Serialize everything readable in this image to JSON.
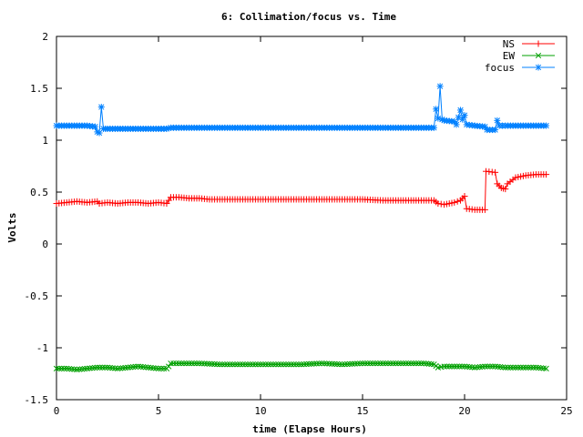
{
  "chart_data": {
    "type": "line",
    "title": "6: Collimation/focus vs. Time",
    "xlabel": "time (Elapse Hours)",
    "ylabel": "Volts",
    "xlim": [
      0,
      25
    ],
    "ylim": [
      -1.5,
      2
    ],
    "xticks": [
      0,
      5,
      10,
      15,
      20,
      25
    ],
    "yticks": [
      -1.5,
      -1,
      -0.5,
      0,
      0.5,
      1,
      1.5,
      2
    ],
    "ytick_labels": [
      "-1.5",
      "-1",
      "-0.5",
      "0",
      "0.5",
      "1",
      "1.5",
      "2"
    ],
    "grid": false,
    "legend_position": "top-right",
    "series": [
      {
        "name": "NS",
        "color": "#ff0000",
        "marker": "plus",
        "points": [
          [
            0,
            0.39
          ],
          [
            0.5,
            0.4
          ],
          [
            1,
            0.41
          ],
          [
            1.5,
            0.4
          ],
          [
            2,
            0.41
          ],
          [
            2.1,
            0.39
          ],
          [
            2.5,
            0.4
          ],
          [
            3,
            0.39
          ],
          [
            3.5,
            0.4
          ],
          [
            4,
            0.4
          ],
          [
            4.5,
            0.39
          ],
          [
            5,
            0.4
          ],
          [
            5.4,
            0.39
          ],
          [
            5.5,
            0.42
          ],
          [
            5.6,
            0.45
          ],
          [
            6,
            0.45
          ],
          [
            6.5,
            0.44
          ],
          [
            7,
            0.44
          ],
          [
            7.5,
            0.43
          ],
          [
            8,
            0.43
          ],
          [
            9,
            0.43
          ],
          [
            10,
            0.43
          ],
          [
            11,
            0.43
          ],
          [
            12,
            0.43
          ],
          [
            13,
            0.43
          ],
          [
            14,
            0.43
          ],
          [
            15,
            0.43
          ],
          [
            16,
            0.42
          ],
          [
            17,
            0.42
          ],
          [
            18,
            0.42
          ],
          [
            18.5,
            0.42
          ],
          [
            18.7,
            0.39
          ],
          [
            19,
            0.38
          ],
          [
            19.5,
            0.4
          ],
          [
            19.8,
            0.42
          ],
          [
            20,
            0.46
          ],
          [
            20.1,
            0.34
          ],
          [
            20.5,
            0.33
          ],
          [
            21,
            0.33
          ],
          [
            21.05,
            0.7
          ],
          [
            21.5,
            0.69
          ],
          [
            21.6,
            0.58
          ],
          [
            21.8,
            0.54
          ],
          [
            22,
            0.53
          ],
          [
            22.1,
            0.58
          ],
          [
            22.5,
            0.64
          ],
          [
            23,
            0.66
          ],
          [
            23.5,
            0.67
          ],
          [
            24,
            0.67
          ]
        ]
      },
      {
        "name": "EW",
        "color": "#00a000",
        "marker": "x",
        "points": [
          [
            0,
            -1.2
          ],
          [
            0.5,
            -1.2
          ],
          [
            1,
            -1.21
          ],
          [
            1.5,
            -1.2
          ],
          [
            2,
            -1.19
          ],
          [
            2.5,
            -1.19
          ],
          [
            3,
            -1.2
          ],
          [
            3.5,
            -1.19
          ],
          [
            4,
            -1.18
          ],
          [
            4.5,
            -1.19
          ],
          [
            5,
            -1.2
          ],
          [
            5.4,
            -1.2
          ],
          [
            5.5,
            -1.18
          ],
          [
            5.6,
            -1.15
          ],
          [
            6,
            -1.15
          ],
          [
            7,
            -1.15
          ],
          [
            8,
            -1.16
          ],
          [
            9,
            -1.16
          ],
          [
            10,
            -1.16
          ],
          [
            11,
            -1.16
          ],
          [
            12,
            -1.16
          ],
          [
            13,
            -1.15
          ],
          [
            14,
            -1.16
          ],
          [
            15,
            -1.15
          ],
          [
            16,
            -1.15
          ],
          [
            17,
            -1.15
          ],
          [
            18,
            -1.15
          ],
          [
            18.5,
            -1.16
          ],
          [
            18.7,
            -1.19
          ],
          [
            19,
            -1.18
          ],
          [
            19.5,
            -1.18
          ],
          [
            20,
            -1.18
          ],
          [
            20.5,
            -1.19
          ],
          [
            21,
            -1.18
          ],
          [
            21.5,
            -1.18
          ],
          [
            22,
            -1.19
          ],
          [
            22.5,
            -1.19
          ],
          [
            23,
            -1.19
          ],
          [
            23.5,
            -1.19
          ],
          [
            24,
            -1.2
          ]
        ]
      },
      {
        "name": "focus",
        "color": "#0080ff",
        "marker": "star",
        "points": [
          [
            0,
            1.14
          ],
          [
            0.5,
            1.14
          ],
          [
            1,
            1.14
          ],
          [
            1.5,
            1.14
          ],
          [
            1.9,
            1.13
          ],
          [
            2.0,
            1.08
          ],
          [
            2.1,
            1.07
          ],
          [
            2.2,
            1.32
          ],
          [
            2.3,
            1.11
          ],
          [
            2.5,
            1.11
          ],
          [
            3,
            1.11
          ],
          [
            3.5,
            1.11
          ],
          [
            4,
            1.11
          ],
          [
            4.5,
            1.11
          ],
          [
            5,
            1.11
          ],
          [
            5.4,
            1.11
          ],
          [
            5.6,
            1.12
          ],
          [
            6,
            1.12
          ],
          [
            7,
            1.12
          ],
          [
            8,
            1.12
          ],
          [
            9,
            1.12
          ],
          [
            10,
            1.12
          ],
          [
            11,
            1.12
          ],
          [
            12,
            1.12
          ],
          [
            13,
            1.12
          ],
          [
            14,
            1.12
          ],
          [
            15,
            1.12
          ],
          [
            16,
            1.12
          ],
          [
            17,
            1.12
          ],
          [
            18,
            1.12
          ],
          [
            18.5,
            1.12
          ],
          [
            18.6,
            1.3
          ],
          [
            18.7,
            1.21
          ],
          [
            18.8,
            1.52
          ],
          [
            18.9,
            1.2
          ],
          [
            19,
            1.19
          ],
          [
            19.5,
            1.18
          ],
          [
            19.6,
            1.15
          ],
          [
            19.8,
            1.29
          ],
          [
            19.9,
            1.2
          ],
          [
            20.0,
            1.24
          ],
          [
            20.1,
            1.15
          ],
          [
            20.5,
            1.14
          ],
          [
            21,
            1.13
          ],
          [
            21.1,
            1.1
          ],
          [
            21.5,
            1.1
          ],
          [
            21.6,
            1.19
          ],
          [
            21.7,
            1.14
          ],
          [
            22,
            1.14
          ],
          [
            22.5,
            1.14
          ],
          [
            23,
            1.14
          ],
          [
            23.5,
            1.14
          ],
          [
            24,
            1.14
          ]
        ]
      }
    ]
  }
}
